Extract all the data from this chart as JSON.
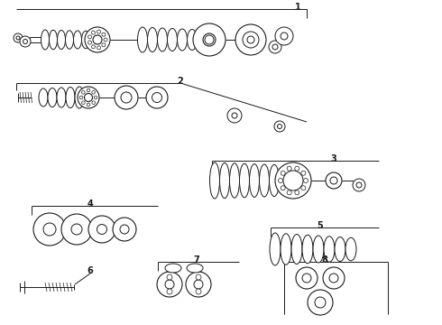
{
  "bg_color": "#ffffff",
  "line_color": "#1a1a1a",
  "fig_width": 4.9,
  "fig_height": 3.6,
  "dpi": 100,
  "xlim": [
    0,
    490
  ],
  "ylim": [
    0,
    360
  ]
}
